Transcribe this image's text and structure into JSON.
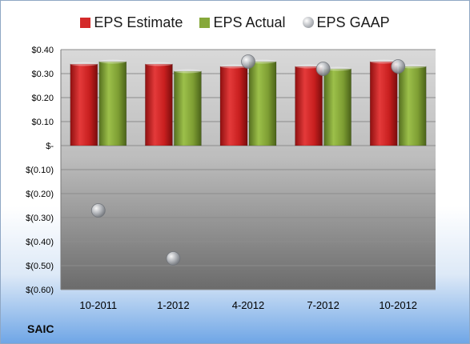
{
  "company": "SAIC",
  "chart_data": {
    "type": "bar",
    "categories": [
      "10-2011",
      "1-2012",
      "4-2012",
      "7-2012",
      "10-2012"
    ],
    "series": [
      {
        "name": "EPS Estimate",
        "kind": "bar",
        "color": "#d42a2a",
        "values": [
          0.34,
          0.34,
          0.33,
          0.33,
          0.35
        ]
      },
      {
        "name": "EPS Actual",
        "kind": "bar",
        "color": "#86a83a",
        "values": [
          0.35,
          0.31,
          0.35,
          0.32,
          0.33
        ]
      },
      {
        "name": "EPS GAAP",
        "kind": "marker",
        "color": "#a9adb3",
        "values": [
          -0.27,
          -0.47,
          0.35,
          0.32,
          0.33
        ]
      }
    ],
    "ylim": [
      -0.6,
      0.4
    ],
    "yticks": [
      0.4,
      0.3,
      0.2,
      0.1,
      0,
      -0.1,
      -0.2,
      -0.3,
      -0.4,
      -0.5,
      -0.6
    ],
    "ytick_labels": [
      "$0.40",
      "$0.30",
      "$0.20",
      "$0.10",
      "$-",
      "$(0.10)",
      "$(0.20)",
      "$(0.30)",
      "$(0.40)",
      "$(0.50)",
      "$(0.60)"
    ],
    "legend_position": "top",
    "grid": true
  }
}
